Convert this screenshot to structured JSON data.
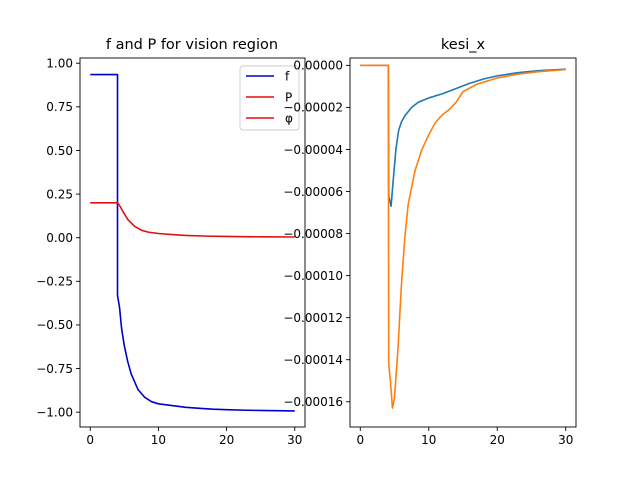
{
  "chart_data": [
    {
      "type": "line",
      "title": "f and P for vision region",
      "xlabel": "",
      "ylabel": "",
      "xlim": [
        -1.5,
        31.5
      ],
      "ylim": [
        -1.085,
        1.03
      ],
      "xticks": [
        0,
        10,
        20,
        30
      ],
      "xtick_labels": [
        "0",
        "10",
        "20",
        "30"
      ],
      "yticks": [
        1.0,
        0.75,
        0.5,
        0.25,
        0.0,
        -0.25,
        -0.5,
        -0.75,
        -1.0
      ],
      "ytick_labels": [
        "1.00",
        "0.75",
        "0.50",
        "0.25",
        "0.00",
        "−0.25",
        "−0.50",
        "−0.75",
        "−1.00"
      ],
      "grid": false,
      "legend": {
        "placement": "top-right",
        "entries": [
          {
            "label": "f",
            "color": "#0000cc"
          },
          {
            "label": "P",
            "color": "#dd1111"
          },
          {
            "label": "φ",
            "color": "#dd1111"
          }
        ]
      },
      "series": [
        {
          "color": "#0000cc",
          "points": [
            [
              0,
              0.935
            ],
            [
              4.0,
              0.935
            ],
            [
              4.0,
              -0.33
            ],
            [
              4.3,
              -0.4
            ],
            [
              4.6,
              -0.52
            ],
            [
              5.0,
              -0.62
            ],
            [
              5.5,
              -0.71
            ],
            [
              6.0,
              -0.78
            ],
            [
              7.0,
              -0.87
            ],
            [
              8.0,
              -0.915
            ],
            [
              9.0,
              -0.94
            ],
            [
              10.0,
              -0.952
            ],
            [
              12.0,
              -0.962
            ],
            [
              14.0,
              -0.972
            ],
            [
              16.0,
              -0.978
            ],
            [
              18.0,
              -0.983
            ],
            [
              20.0,
              -0.986
            ],
            [
              23.0,
              -0.989
            ],
            [
              26.0,
              -0.991
            ],
            [
              30.0,
              -0.993
            ]
          ]
        },
        {
          "color": "#dd1111",
          "points": [
            [
              0,
              0.2
            ],
            [
              4.0,
              0.2
            ],
            [
              4.3,
              0.185
            ],
            [
              4.8,
              0.15
            ],
            [
              5.5,
              0.105
            ],
            [
              6.5,
              0.065
            ],
            [
              7.5,
              0.043
            ],
            [
              8.5,
              0.032
            ],
            [
              10.0,
              0.024
            ],
            [
              12.0,
              0.018
            ],
            [
              14.0,
              0.013
            ],
            [
              17.0,
              0.009
            ],
            [
              20.0,
              0.007
            ],
            [
              25.0,
              0.005
            ],
            [
              30.0,
              0.004
            ]
          ]
        }
      ]
    },
    {
      "type": "line",
      "title": "kesi_x",
      "xlabel": "",
      "ylabel": "",
      "xlim": [
        -1.5,
        31.5
      ],
      "ylim": [
        -0.000172,
        3.5e-06
      ],
      "xticks": [
        0,
        10,
        20,
        30
      ],
      "xtick_labels": [
        "0",
        "10",
        "20",
        "30"
      ],
      "yticks": [
        0.0,
        -2e-05,
        -4e-05,
        -6e-05,
        -8e-05,
        -0.0001,
        -0.00012,
        -0.00014,
        -0.00016
      ],
      "ytick_labels": [
        "0.00000",
        "−0.00002",
        "−0.00004",
        "−0.00006",
        "−0.00008",
        "−0.00010",
        "−0.00012",
        "−0.00014",
        "−0.00016"
      ],
      "grid": false,
      "series": [
        {
          "color": "#1f77b4",
          "points": [
            [
              0,
              0.0
            ],
            [
              4.1,
              0.0
            ],
            [
              4.15,
              -6.2e-05
            ],
            [
              4.5,
              -6.7e-05
            ],
            [
              4.8,
              -5.5e-05
            ],
            [
              5.2,
              -4e-05
            ],
            [
              5.6,
              -3.1e-05
            ],
            [
              6.0,
              -2.7e-05
            ],
            [
              6.5,
              -2.4e-05
            ],
            [
              7.5,
              -2e-05
            ],
            [
              8.5,
              -1.75e-05
            ],
            [
              10.0,
              -1.55e-05
            ],
            [
              12.0,
              -1.35e-05
            ],
            [
              14.0,
              -1.1e-05
            ],
            [
              16.0,
              -8.5e-06
            ],
            [
              18.0,
              -6.5e-06
            ],
            [
              20.0,
              -5e-06
            ],
            [
              23.0,
              -3.5e-06
            ],
            [
              26.0,
              -2.5e-06
            ],
            [
              30.0,
              -1.8e-06
            ]
          ]
        },
        {
          "color": "#ff7f0e",
          "points": [
            [
              0,
              0.0
            ],
            [
              4.1,
              0.0
            ],
            [
              4.15,
              -0.000142
            ],
            [
              4.4,
              -0.00015
            ],
            [
              4.7,
              -0.000163
            ],
            [
              5.0,
              -0.000158
            ],
            [
              5.5,
              -0.000135
            ],
            [
              6.0,
              -0.000105
            ],
            [
              6.5,
              -8.2e-05
            ],
            [
              7.0,
              -6.6e-05
            ],
            [
              8.0,
              -5e-05
            ],
            [
              9.0,
              -4e-05
            ],
            [
              10.0,
              -3.3e-05
            ],
            [
              11.0,
              -2.7e-05
            ],
            [
              12.0,
              -2.35e-05
            ],
            [
              13.0,
              -2.1e-05
            ],
            [
              14.0,
              -1.75e-05
            ],
            [
              15.0,
              -1.25e-05
            ],
            [
              17.0,
              -9e-06
            ],
            [
              20.0,
              -6e-06
            ],
            [
              23.0,
              -4.2e-06
            ],
            [
              26.0,
              -3e-06
            ],
            [
              30.0,
              -2e-06
            ]
          ]
        }
      ]
    }
  ]
}
